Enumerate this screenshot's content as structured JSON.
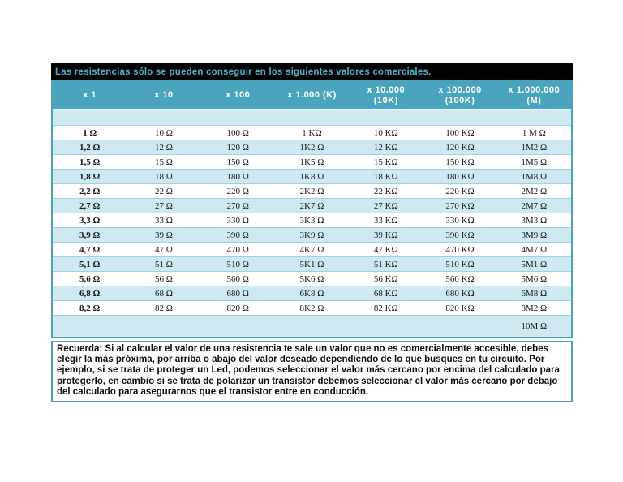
{
  "table": {
    "title": "Las resistencias sólo se pueden conseguir en los siguientes valores comerciales.",
    "columns": [
      "x 1",
      "x 10",
      "x 100",
      "x 1.000 (K)",
      "x 10.000\n(10K)",
      "x 100.000\n(100K)",
      "x 1.000.000\n(M)"
    ],
    "rows": [
      [
        "",
        "",
        "",
        "",
        "",
        "",
        ""
      ],
      [
        "1 Ω",
        "10 Ω",
        "100 Ω",
        "1 KΩ",
        "10 KΩ",
        "100 KΩ",
        "1 M Ω"
      ],
      [
        "1,2 Ω",
        "12 Ω",
        "120 Ω",
        "1K2 Ω",
        "12 KΩ",
        "120 KΩ",
        "1M2 Ω"
      ],
      [
        "1,5 Ω",
        "15 Ω",
        "150 Ω",
        "1K5 Ω",
        "15 KΩ",
        "150 KΩ",
        "1M5 Ω"
      ],
      [
        "1,8 Ω",
        "18 Ω",
        "180 Ω",
        "1K8 Ω",
        "18 KΩ",
        "180 KΩ",
        "1M8 Ω"
      ],
      [
        "2,2 Ω",
        "22 Ω",
        "220 Ω",
        "2K2 Ω",
        "22 KΩ",
        "220 KΩ",
        "2M2 Ω"
      ],
      [
        "2,7 Ω",
        "27 Ω",
        "270 Ω",
        "2K7 Ω",
        "27 KΩ",
        "270 KΩ",
        "2M7 Ω"
      ],
      [
        "3,3 Ω",
        "33 Ω",
        "330 Ω",
        "3K3 Ω",
        "33 KΩ",
        "330 KΩ",
        "3M3 Ω"
      ],
      [
        "3,9 Ω",
        "39 Ω",
        "390 Ω",
        "3K9 Ω",
        "39 KΩ",
        "390 KΩ",
        "3M9 Ω"
      ],
      [
        "4,7 Ω",
        "47 Ω",
        "470 Ω",
        "4K7 Ω",
        "47 KΩ",
        "470 KΩ",
        "4M7 Ω"
      ],
      [
        "5,1 Ω",
        "51 Ω",
        "510 Ω",
        "5K1 Ω",
        "51 KΩ",
        "510 KΩ",
        "5M1 Ω"
      ],
      [
        "5,6 Ω",
        "56 Ω",
        "560 Ω",
        "5K6 Ω",
        "56 KΩ",
        "560 KΩ",
        "5M6 Ω"
      ],
      [
        "6,8 Ω",
        "68 Ω",
        "680 Ω",
        "6K8 Ω",
        "68 KΩ",
        "680 KΩ",
        "6M8 Ω"
      ],
      [
        "8,2 Ω",
        "82 Ω",
        "820 Ω",
        "8K2 Ω",
        "82 KΩ",
        "820 KΩ",
        "8M2 Ω"
      ],
      [
        "",
        "",
        "",
        "",
        "",
        "",
        "10M Ω"
      ]
    ]
  },
  "note": {
    "text": "Recuerda: Si al calcular el valor de una resistencia te sale un valor que no es comercialmente accesible, debes elegir la más próxima, por arriba o abajo del valor deseado dependiendo de lo que busques en tu circuito. Por ejemplo, si se trata de proteger un Led, podemos seleccionar el valor más cercano por encima del calculado para protegerlo, en cambio si se trata de polarizar un transistor debemos seleccionar el valor más cercano por debajo del calculado para asegurarnos que el transistor entre en conducción."
  },
  "colors": {
    "title_bar_bg": "#030303",
    "title_text": "#4bb0cc",
    "header_bg": "#4aa4be",
    "header_text": "#ffffff",
    "row_light_blue": "#cfe9f2",
    "row_white": "#ffffff",
    "row_separator": "#9ed2e2",
    "frame_border": "#4aa3bd"
  }
}
